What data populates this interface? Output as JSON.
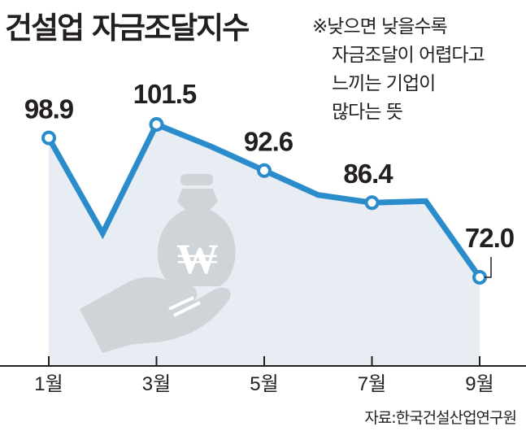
{
  "title": "건설업 자금조달지수",
  "note": [
    "※낮으면 낮을수록",
    "자금조달이 어렵다고",
    "느끼는 기업이",
    "많다는 뜻"
  ],
  "source": "자료:한국건설산업연구원",
  "colors": {
    "line": "#2b8ccb",
    "area": "#e8edf3",
    "marker_fill": "#ffffff",
    "illustration": "#cfd4d9",
    "axis": "#231f20"
  },
  "illustration_icon": "money-bag-won-hand-icon",
  "chart_data": {
    "type": "line",
    "title": "건설업 자금조달지수",
    "x": [
      1,
      2,
      3,
      4,
      5,
      6,
      7,
      8,
      9
    ],
    "x_tick_labels": [
      "1월",
      "3월",
      "5월",
      "7월",
      "9월"
    ],
    "x_tick_values": [
      1,
      3,
      5,
      7,
      9
    ],
    "series": [
      {
        "values": [
          98.9,
          80.5,
          101.5,
          97.3,
          92.6,
          87.9,
          86.4,
          86.7,
          72.0
        ]
      }
    ],
    "data_labels": [
      {
        "x": 1,
        "text": "98.9"
      },
      {
        "x": 3,
        "text": "101.5"
      },
      {
        "x": 5,
        "text": "92.6"
      },
      {
        "x": 7,
        "text": "86.4"
      },
      {
        "x": 9,
        "text": "72.0"
      }
    ],
    "markers_at": [
      1,
      3,
      5,
      7,
      9
    ],
    "xlim": [
      1,
      9
    ],
    "ylim": [
      60,
      105
    ],
    "grid": false,
    "filled_area": true
  }
}
